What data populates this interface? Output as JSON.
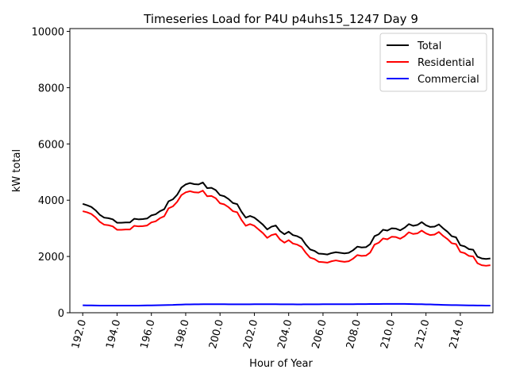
{
  "chart_data": {
    "type": "line",
    "title": "Timeseries Load for P4U p4uhs15_1247  Day 9",
    "xlabel": "Hour of Year",
    "ylabel": "kW total",
    "xlim": [
      191.25,
      215.9
    ],
    "ylim": [
      0,
      10100
    ],
    "x_ticks": [
      192.0,
      194.0,
      196.0,
      198.0,
      200.0,
      202.0,
      204.0,
      206.0,
      208.0,
      210.0,
      212.0,
      214.0
    ],
    "x_tick_labels": [
      "192.0",
      "194.0",
      "196.0",
      "198.0",
      "200.0",
      "202.0",
      "204.0",
      "206.0",
      "208.0",
      "210.0",
      "212.0",
      "214.0"
    ],
    "y_ticks": [
      0,
      2000,
      4000,
      6000,
      8000,
      10000
    ],
    "y_tick_labels": [
      "0",
      "2000",
      "4000",
      "6000",
      "8000",
      "10000"
    ],
    "legend_position": "top-right",
    "grid": false,
    "x": [
      192.0,
      192.25,
      192.5,
      192.75,
      193.0,
      193.25,
      193.5,
      193.75,
      194.0,
      194.25,
      194.5,
      194.75,
      195.0,
      195.25,
      195.5,
      195.75,
      196.0,
      196.25,
      196.5,
      196.75,
      197.0,
      197.25,
      197.5,
      197.75,
      198.0,
      198.25,
      198.5,
      198.75,
      199.0,
      199.25,
      199.5,
      199.75,
      200.0,
      200.25,
      200.5,
      200.75,
      201.0,
      201.25,
      201.5,
      201.75,
      202.0,
      202.25,
      202.5,
      202.75,
      203.0,
      203.25,
      203.5,
      203.75,
      204.0,
      204.25,
      204.5,
      204.75,
      205.0,
      205.25,
      205.5,
      205.75,
      206.0,
      206.25,
      206.5,
      206.75,
      207.0,
      207.25,
      207.5,
      207.75,
      208.0,
      208.25,
      208.5,
      208.75,
      209.0,
      209.25,
      209.5,
      209.75,
      210.0,
      210.25,
      210.5,
      210.75,
      211.0,
      211.25,
      211.5,
      211.75,
      212.0,
      212.25,
      212.5,
      212.75,
      213.0,
      213.25,
      213.5,
      213.75,
      214.0,
      214.25,
      214.5,
      214.75,
      215.0,
      215.25,
      215.5,
      215.75
    ],
    "series": [
      {
        "name": "Total",
        "color": "#000000",
        "values": [
          3870,
          3820,
          3760,
          3640,
          3480,
          3380,
          3360,
          3320,
          3200,
          3200,
          3210,
          3210,
          3340,
          3320,
          3330,
          3350,
          3460,
          3500,
          3610,
          3680,
          3960,
          4030,
          4190,
          4450,
          4560,
          4610,
          4570,
          4560,
          4630,
          4430,
          4440,
          4360,
          4180,
          4140,
          4040,
          3900,
          3860,
          3590,
          3380,
          3440,
          3380,
          3260,
          3130,
          2960,
          3060,
          3100,
          2900,
          2790,
          2880,
          2760,
          2720,
          2640,
          2420,
          2250,
          2200,
          2100,
          2090,
          2070,
          2120,
          2150,
          2130,
          2110,
          2130,
          2220,
          2350,
          2320,
          2330,
          2440,
          2720,
          2790,
          2950,
          2920,
          3000,
          2990,
          2930,
          3020,
          3150,
          3090,
          3120,
          3220,
          3110,
          3050,
          3060,
          3140,
          3000,
          2880,
          2720,
          2680,
          2400,
          2360,
          2260,
          2240,
          1990,
          1930,
          1910,
          1930
        ]
      },
      {
        "name": "Residential",
        "color": "#ff0000",
        "values": [
          3610,
          3570,
          3510,
          3390,
          3230,
          3130,
          3110,
          3070,
          2950,
          2950,
          2960,
          2960,
          3090,
          3070,
          3080,
          3100,
          3210,
          3250,
          3360,
          3430,
          3710,
          3780,
          3940,
          4180,
          4280,
          4320,
          4280,
          4270,
          4340,
          4140,
          4150,
          4070,
          3890,
          3850,
          3750,
          3610,
          3570,
          3300,
          3090,
          3150,
          3090,
          2960,
          2830,
          2660,
          2760,
          2800,
          2600,
          2490,
          2580,
          2460,
          2420,
          2340,
          2130,
          1960,
          1910,
          1810,
          1800,
          1780,
          1830,
          1860,
          1830,
          1810,
          1830,
          1920,
          2050,
          2020,
          2030,
          2140,
          2420,
          2490,
          2640,
          2610,
          2700,
          2690,
          2630,
          2720,
          2860,
          2800,
          2820,
          2920,
          2820,
          2760,
          2780,
          2870,
          2730,
          2620,
          2470,
          2440,
          2160,
          2120,
          2020,
          2000,
          1760,
          1690,
          1670,
          1690
        ]
      },
      {
        "name": "Commercial",
        "color": "#0000ff",
        "values": [
          265,
          262,
          260,
          258,
          255,
          255,
          255,
          255,
          255,
          255,
          255,
          255,
          255,
          255,
          258,
          260,
          262,
          265,
          268,
          270,
          275,
          278,
          285,
          290,
          295,
          298,
          300,
          300,
          302,
          302,
          302,
          302,
          302,
          302,
          300,
          300,
          300,
          300,
          300,
          300,
          302,
          302,
          302,
          302,
          302,
          302,
          300,
          300,
          300,
          300,
          298,
          298,
          300,
          300,
          300,
          300,
          302,
          302,
          302,
          302,
          305,
          305,
          305,
          305,
          308,
          308,
          308,
          310,
          312,
          312,
          315,
          315,
          315,
          315,
          315,
          315,
          312,
          308,
          305,
          302,
          298,
          295,
          290,
          285,
          280,
          275,
          272,
          270,
          268,
          265,
          262,
          260,
          258,
          256,
          255,
          255
        ]
      }
    ]
  }
}
